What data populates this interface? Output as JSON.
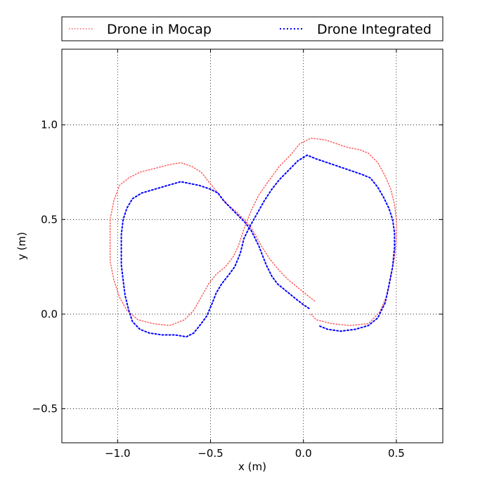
{
  "chart_data": {
    "type": "line",
    "title": "",
    "xlabel": "x (m)",
    "ylabel": "y (m)",
    "xlim": [
      -1.3,
      0.75
    ],
    "ylim": [
      -0.68,
      1.4
    ],
    "xticks": [
      -1.0,
      -0.5,
      0.0,
      0.5
    ],
    "xtick_labels": [
      "−1.0",
      "−0.5",
      "0.0",
      "0.5"
    ],
    "yticks": [
      -0.5,
      0.0,
      0.5,
      1.0
    ],
    "ytick_labels": [
      "−0.5",
      "0.0",
      "0.5",
      "1.0"
    ],
    "grid": true,
    "legend_position": "top, above plot",
    "series": [
      {
        "name": "Drone in Mocap",
        "color": "#ff5555",
        "style": "dotted",
        "points": [
          [
            0.06,
            0.07
          ],
          [
            0.02,
            0.1
          ],
          [
            -0.03,
            0.14
          ],
          [
            -0.08,
            0.18
          ],
          [
            -0.13,
            0.23
          ],
          [
            -0.18,
            0.29
          ],
          [
            -0.22,
            0.35
          ],
          [
            -0.26,
            0.42
          ],
          [
            -0.29,
            0.47
          ],
          [
            -0.32,
            0.5
          ],
          [
            -0.36,
            0.54
          ],
          [
            -0.41,
            0.58
          ],
          [
            -0.46,
            0.64
          ],
          [
            -0.51,
            0.7
          ],
          [
            -0.55,
            0.75
          ],
          [
            -0.6,
            0.78
          ],
          [
            -0.66,
            0.8
          ],
          [
            -0.72,
            0.79
          ],
          [
            -0.8,
            0.77
          ],
          [
            -0.88,
            0.75
          ],
          [
            -0.94,
            0.72
          ],
          [
            -0.99,
            0.68
          ],
          [
            -1.02,
            0.6
          ],
          [
            -1.04,
            0.5
          ],
          [
            -1.04,
            0.4
          ],
          [
            -1.04,
            0.28
          ],
          [
            -1.02,
            0.18
          ],
          [
            -0.99,
            0.09
          ],
          [
            -0.95,
            0.02
          ],
          [
            -0.89,
            -0.03
          ],
          [
            -0.81,
            -0.05
          ],
          [
            -0.72,
            -0.06
          ],
          [
            -0.64,
            -0.03
          ],
          [
            -0.59,
            0.02
          ],
          [
            -0.55,
            0.09
          ],
          [
            -0.51,
            0.16
          ],
          [
            -0.47,
            0.21
          ],
          [
            -0.42,
            0.25
          ],
          [
            -0.38,
            0.3
          ],
          [
            -0.35,
            0.36
          ],
          [
            -0.32,
            0.45
          ],
          [
            -0.28,
            0.55
          ],
          [
            -0.24,
            0.63
          ],
          [
            -0.19,
            0.7
          ],
          [
            -0.13,
            0.78
          ],
          [
            -0.07,
            0.84
          ],
          [
            -0.02,
            0.9
          ],
          [
            0.04,
            0.93
          ],
          [
            0.12,
            0.92
          ],
          [
            0.18,
            0.9
          ],
          [
            0.24,
            0.88
          ],
          [
            0.3,
            0.87
          ],
          [
            0.35,
            0.85
          ],
          [
            0.4,
            0.8
          ],
          [
            0.44,
            0.73
          ],
          [
            0.47,
            0.66
          ],
          [
            0.49,
            0.58
          ],
          [
            0.5,
            0.5
          ],
          [
            0.5,
            0.4
          ],
          [
            0.49,
            0.3
          ],
          [
            0.47,
            0.2
          ],
          [
            0.45,
            0.1
          ],
          [
            0.41,
            0.01
          ],
          [
            0.35,
            -0.05
          ],
          [
            0.25,
            -0.06
          ],
          [
            0.15,
            -0.05
          ],
          [
            0.07,
            -0.03
          ],
          [
            0.04,
            0.0
          ]
        ]
      },
      {
        "name": "Drone Integrated",
        "color": "#0000ff",
        "style": "dotted",
        "points": [
          [
            0.03,
            0.03
          ],
          [
            0.0,
            0.05
          ],
          [
            -0.04,
            0.08
          ],
          [
            -0.09,
            0.12
          ],
          [
            -0.14,
            0.16
          ],
          [
            -0.17,
            0.2
          ],
          [
            -0.2,
            0.26
          ],
          [
            -0.22,
            0.31
          ],
          [
            -0.24,
            0.36
          ],
          [
            -0.26,
            0.4
          ],
          [
            -0.28,
            0.44
          ],
          [
            -0.31,
            0.48
          ],
          [
            -0.35,
            0.52
          ],
          [
            -0.39,
            0.56
          ],
          [
            -0.43,
            0.6
          ],
          [
            -0.46,
            0.64
          ],
          [
            -0.5,
            0.66
          ],
          [
            -0.56,
            0.68
          ],
          [
            -0.61,
            0.69
          ],
          [
            -0.66,
            0.7
          ],
          [
            -0.73,
            0.68
          ],
          [
            -0.8,
            0.66
          ],
          [
            -0.87,
            0.64
          ],
          [
            -0.92,
            0.61
          ],
          [
            -0.95,
            0.56
          ],
          [
            -0.97,
            0.5
          ],
          [
            -0.98,
            0.42
          ],
          [
            -0.98,
            0.34
          ],
          [
            -0.98,
            0.26
          ],
          [
            -0.97,
            0.18
          ],
          [
            -0.96,
            0.1
          ],
          [
            -0.94,
            0.02
          ],
          [
            -0.92,
            -0.04
          ],
          [
            -0.88,
            -0.08
          ],
          [
            -0.83,
            -0.1
          ],
          [
            -0.76,
            -0.11
          ],
          [
            -0.69,
            -0.11
          ],
          [
            -0.63,
            -0.12
          ],
          [
            -0.59,
            -0.1
          ],
          [
            -0.55,
            -0.05
          ],
          [
            -0.52,
            -0.01
          ],
          [
            -0.49,
            0.06
          ],
          [
            -0.47,
            0.11
          ],
          [
            -0.44,
            0.16
          ],
          [
            -0.4,
            0.21
          ],
          [
            -0.37,
            0.25
          ],
          [
            -0.34,
            0.32
          ],
          [
            -0.32,
            0.4
          ],
          [
            -0.29,
            0.46
          ],
          [
            -0.25,
            0.53
          ],
          [
            -0.21,
            0.6
          ],
          [
            -0.17,
            0.66
          ],
          [
            -0.13,
            0.71
          ],
          [
            -0.07,
            0.77
          ],
          [
            -0.03,
            0.81
          ],
          [
            0.02,
            0.84
          ],
          [
            0.07,
            0.82
          ],
          [
            0.13,
            0.8
          ],
          [
            0.19,
            0.78
          ],
          [
            0.25,
            0.76
          ],
          [
            0.31,
            0.74
          ],
          [
            0.36,
            0.72
          ],
          [
            0.4,
            0.67
          ],
          [
            0.43,
            0.62
          ],
          [
            0.46,
            0.56
          ],
          [
            0.48,
            0.5
          ],
          [
            0.49,
            0.43
          ],
          [
            0.49,
            0.35
          ],
          [
            0.48,
            0.25
          ],
          [
            0.46,
            0.15
          ],
          [
            0.44,
            0.06
          ],
          [
            0.4,
            -0.02
          ],
          [
            0.35,
            -0.06
          ],
          [
            0.28,
            -0.08
          ],
          [
            0.2,
            -0.09
          ],
          [
            0.13,
            -0.08
          ],
          [
            0.08,
            -0.06
          ]
        ]
      }
    ]
  }
}
